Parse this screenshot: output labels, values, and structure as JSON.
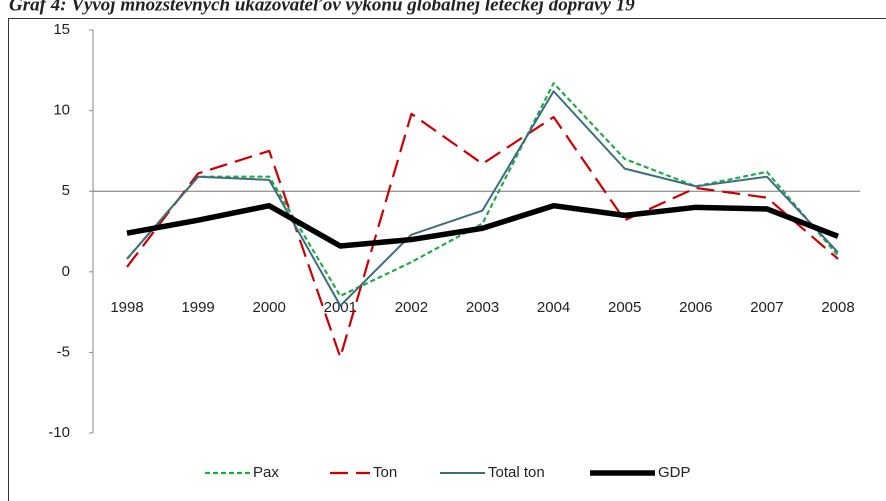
{
  "chart_data": {
    "type": "line",
    "title": "Graf 4: Vývoj množstevných ukazovateľov výkonu globálnej leteckej dopravy 19",
    "categories": [
      "1998",
      "1999",
      "2000",
      "2001",
      "2002",
      "2003",
      "2004",
      "2005",
      "2006",
      "2007",
      "2008"
    ],
    "series": [
      {
        "name": "Pax",
        "color": "#22aa44",
        "style": "short-dash",
        "values": [
          0.8,
          5.9,
          5.9,
          -1.5,
          0.6,
          3.0,
          11.7,
          7.0,
          5.3,
          6.2,
          1.0
        ]
      },
      {
        "name": "Ton",
        "color": "#cc0000",
        "style": "long-dash",
        "values": [
          0.3,
          6.1,
          7.5,
          -5.3,
          9.8,
          6.7,
          9.6,
          3.2,
          5.2,
          4.6,
          0.8
        ]
      },
      {
        "name": "Total ton",
        "color": "#3d6e80",
        "style": "solid",
        "values": [
          0.8,
          5.9,
          5.7,
          -2.1,
          2.3,
          3.8,
          11.2,
          6.4,
          5.3,
          5.9,
          1.2
        ]
      },
      {
        "name": "GDP",
        "color": "#000000",
        "style": "thick",
        "values": [
          2.4,
          3.2,
          4.1,
          1.6,
          2.0,
          2.7,
          4.1,
          3.5,
          4.0,
          3.9,
          2.2
        ]
      }
    ],
    "ylim": [
      -10,
      15
    ],
    "yticks": [
      -10,
      -5,
      0,
      5,
      10,
      15
    ],
    "hlines": [
      5
    ],
    "legend": "bottom"
  }
}
